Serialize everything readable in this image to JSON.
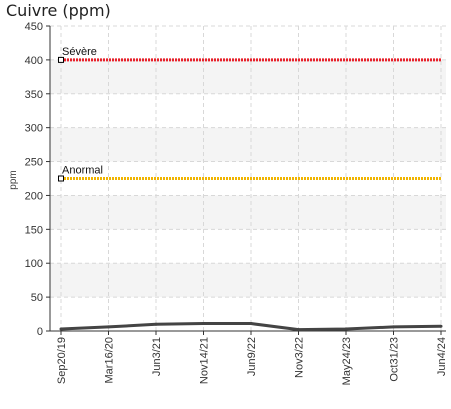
{
  "chart_data": {
    "type": "line",
    "title": "Cuivre (ppm)",
    "ylabel": "ppm",
    "xlabel": "",
    "ylim": [
      0,
      450
    ],
    "yticks": [
      0,
      50,
      100,
      150,
      200,
      250,
      300,
      350,
      400,
      450
    ],
    "categories": [
      "Sep20/19",
      "Mar16/20",
      "Jun3/21",
      "Nov14/21",
      "Jun9/22",
      "Nov3/22",
      "May24/23",
      "Oct31/23",
      "Jun4/24"
    ],
    "grid": true,
    "series": [
      {
        "values": [
          3,
          6,
          10,
          11,
          11,
          2,
          3,
          6,
          7
        ],
        "color": "#444444"
      }
    ],
    "thresholds": [
      {
        "label": "Sévère",
        "value": 400,
        "color": "#e8202a"
      },
      {
        "label": "Anormal",
        "value": 225,
        "color": "#f0b400"
      }
    ]
  }
}
